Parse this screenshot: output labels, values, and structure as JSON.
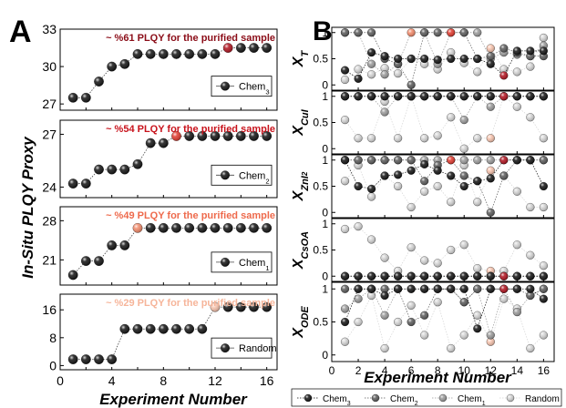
{
  "panel_a": {
    "letter": "A",
    "ylabel": "In-Situ PLQY Proxy",
    "xlabel": "Experiment Number",
    "x_ticks": [
      "0",
      "4",
      "8",
      "12",
      "16"
    ]
  },
  "panel_b": {
    "letter": "B",
    "xlabel": "Experiment Number",
    "x_ticks": [
      "0",
      "2",
      "4",
      "6",
      "8",
      "10",
      "12",
      "14",
      "16"
    ]
  },
  "legend_bottom": [
    "Chem3",
    "Chem2",
    "Chem1",
    "Random"
  ],
  "colors": {
    "chem3": "#111111",
    "chem2": "#5a5a5a",
    "chem1": "#9a9a9a",
    "random": "#d4d4d4",
    "highlight_chem3": "#b0121e",
    "highlight_chem2": "#e23a2e",
    "highlight_chem1": "#f28a6a",
    "highlight_random": "#f7c3ad",
    "annotation_chem3": "#8b0d18",
    "annotation_chem2": "#c8131c",
    "annotation_chem1": "#ee6a4c",
    "annotation_random": "#f6b59a"
  },
  "chart_data": [
    {
      "type": "line",
      "panel": "A",
      "series": [
        {
          "name": "Chem3",
          "values": [
            27.5,
            27.5,
            28.8,
            30.0,
            30.2,
            31.0,
            31.0,
            31.0,
            31.0,
            31.0,
            31.0,
            31.0,
            31.5,
            31.5,
            31.5,
            31.5
          ]
        }
      ],
      "x": [
        1,
        2,
        3,
        4,
        5,
        6,
        7,
        8,
        9,
        10,
        11,
        12,
        13,
        14,
        15,
        16
      ],
      "highlight_index": 12,
      "annotation": "~ %61 PLQY for the purified sample",
      "yticks": [
        27,
        30,
        33
      ],
      "ylim": [
        26.5,
        33
      ],
      "xlim": [
        0,
        16.8
      ]
    },
    {
      "type": "line",
      "panel": "A",
      "series": [
        {
          "name": "Chem2",
          "values": [
            24.2,
            24.2,
            25.0,
            25.0,
            25.0,
            25.3,
            26.5,
            26.5,
            26.9,
            26.9,
            26.9,
            26.9,
            26.9,
            26.9,
            26.9,
            26.9
          ]
        }
      ],
      "x": [
        1,
        2,
        3,
        4,
        5,
        6,
        7,
        8,
        9,
        10,
        11,
        12,
        13,
        14,
        15,
        16
      ],
      "highlight_index": 8,
      "annotation": "~ %54 PLQY for the purified sample",
      "yticks": [
        24,
        27
      ],
      "ylim": [
        23.4,
        27.8
      ],
      "xlim": [
        0,
        16.8
      ]
    },
    {
      "type": "line",
      "panel": "A",
      "series": [
        {
          "name": "Chem1",
          "values": [
            18.3,
            20.8,
            20.8,
            23.6,
            23.6,
            26.7,
            26.7,
            26.7,
            26.7,
            26.7,
            26.7,
            26.7,
            26.7,
            26.7,
            26.7,
            26.7
          ]
        }
      ],
      "x": [
        1,
        2,
        3,
        4,
        5,
        6,
        7,
        8,
        9,
        10,
        11,
        12,
        13,
        14,
        15,
        16
      ],
      "highlight_index": 5,
      "annotation": "~ %49 PLQY for the purified sample",
      "yticks": [
        21,
        28
      ],
      "ylim": [
        16.5,
        30.5
      ],
      "xlim": [
        0,
        16.8
      ]
    },
    {
      "type": "line",
      "panel": "A",
      "series": [
        {
          "name": "Random",
          "values": [
            1.8,
            1.8,
            1.8,
            1.8,
            10.5,
            10.5,
            10.5,
            10.5,
            10.5,
            10.5,
            10.5,
            16.8,
            16.8,
            16.8,
            16.8,
            16.8
          ]
        }
      ],
      "x": [
        1,
        2,
        3,
        4,
        5,
        6,
        7,
        8,
        9,
        10,
        11,
        12,
        13,
        14,
        15,
        16
      ],
      "highlight_index": 11,
      "annotation": "~ %29 PLQY for the purified sample",
      "yticks": [
        0,
        8,
        16
      ],
      "ylim": [
        -1.2,
        20.5
      ],
      "xlim": [
        0,
        16.8
      ]
    },
    {
      "type": "line",
      "panel": "B",
      "ylabel": "X_T",
      "ylim": [
        -0.1,
        1.1
      ],
      "yticks": [
        0.0,
        0.5,
        1.0
      ],
      "xlim": [
        0,
        16.8
      ],
      "x": [
        1,
        2,
        3,
        4,
        5,
        6,
        7,
        8,
        9,
        10,
        11,
        12,
        13,
        14,
        15,
        16
      ],
      "series": [
        {
          "name": "Chem3",
          "values": [
            0.28,
            0.12,
            0.62,
            0.55,
            0.5,
            0.5,
            0.5,
            0.48,
            0.5,
            0.5,
            0.5,
            0.4,
            0.18,
            0.65,
            0.65,
            0.65
          ],
          "highlight_index": 12
        },
        {
          "name": "Chem2",
          "values": [
            1.0,
            1.0,
            1.0,
            0.5,
            0.4,
            0.0,
            1.0,
            1.0,
            1.0,
            1.0,
            0.5,
            0.55,
            0.7,
            0.62,
            0.55,
            0.55
          ],
          "highlight_index": 8
        },
        {
          "name": "Chem1",
          "values": [
            1.0,
            1.0,
            0.4,
            0.2,
            0.4,
            1.0,
            1.0,
            0.4,
            1.0,
            1.0,
            1.0,
            0.5,
            0.62,
            0.58,
            0.55,
            0.75
          ],
          "highlight_index": 5
        },
        {
          "name": "Random",
          "values": [
            0.1,
            0.3,
            0.2,
            0.32,
            0.22,
            0.5,
            0.4,
            0.3,
            0.62,
            0.42,
            0.25,
            0.7,
            0.3,
            0.25,
            0.35,
            0.9
          ],
          "highlight_index": 11
        }
      ]
    },
    {
      "type": "line",
      "panel": "B",
      "ylabel": "X_CuI",
      "ylim": [
        -0.1,
        1.1
      ],
      "yticks": [
        0.0,
        0.5,
        1.0
      ],
      "xlim": [
        0,
        16.8
      ],
      "x": [
        1,
        2,
        3,
        4,
        5,
        6,
        7,
        8,
        9,
        10,
        11,
        12,
        13,
        14,
        15,
        16
      ],
      "series": [
        {
          "name": "Chem3",
          "values": [
            1,
            1,
            1,
            1,
            1,
            1,
            1,
            1,
            1,
            1,
            1,
            1,
            1,
            1,
            1,
            1
          ],
          "highlight_index": 12
        },
        {
          "name": "Chem2",
          "values": [
            1,
            1,
            1,
            1,
            1,
            1,
            1,
            1,
            1,
            1,
            1,
            1,
            1,
            1,
            1,
            1
          ],
          "highlight_index": 8
        },
        {
          "name": "Chem1",
          "values": [
            1,
            1,
            1,
            0.7,
            1,
            1,
            1,
            1,
            1,
            0.55,
            1,
            0.8,
            1,
            1,
            1,
            1
          ],
          "highlight_index": 5
        },
        {
          "name": "Random",
          "values": [
            0.55,
            0.2,
            0.2,
            0.9,
            0.2,
            1,
            0.2,
            0.25,
            0.6,
            0.0,
            0.2,
            0.2,
            1,
            0.8,
            0.6,
            0.2
          ],
          "highlight_index": 11
        }
      ]
    },
    {
      "type": "line",
      "panel": "B",
      "ylabel": "X_ZnI2",
      "ylim": [
        -0.1,
        1.1
      ],
      "yticks": [
        0.0,
        0.5,
        1.0
      ],
      "xlim": [
        0,
        16.8
      ],
      "x": [
        1,
        2,
        3,
        4,
        5,
        6,
        7,
        8,
        9,
        10,
        11,
        12,
        13,
        14,
        15,
        16
      ],
      "series": [
        {
          "name": "Chem3",
          "values": [
            1,
            0.5,
            0.45,
            0.7,
            0.72,
            0.8,
            0.92,
            0.8,
            0.7,
            0.5,
            0.6,
            0.65,
            1.0,
            1.0,
            1.0,
            0.5
          ],
          "highlight_index": 12
        },
        {
          "name": "Chem2",
          "values": [
            1,
            1,
            1,
            1,
            1,
            1,
            0.6,
            0.9,
            1,
            0.7,
            0.6,
            0.0,
            0.7,
            1,
            1,
            1
          ],
          "highlight_index": 8
        },
        {
          "name": "Chem1",
          "values": [
            1,
            1,
            1,
            1,
            1,
            1,
            1,
            1,
            1,
            1,
            1,
            1,
            1,
            1,
            1,
            1
          ],
          "highlight_index": 5
        },
        {
          "name": "Random",
          "values": [
            0.6,
            0.9,
            0.3,
            0.7,
            0.5,
            0.1,
            0.4,
            0.5,
            0.2,
            0.9,
            0.2,
            0.8,
            0.7,
            0.4,
            0.1,
            0.1
          ],
          "highlight_index": 11
        }
      ]
    },
    {
      "type": "line",
      "panel": "B",
      "ylabel": "X_CsOA",
      "ylim": [
        -0.1,
        1.1
      ],
      "yticks": [
        0.0,
        0.5,
        1.0
      ],
      "xlim": [
        0,
        16.8
      ],
      "x": [
        1,
        2,
        3,
        4,
        5,
        6,
        7,
        8,
        9,
        10,
        11,
        12,
        13,
        14,
        15,
        16
      ],
      "series": [
        {
          "name": "Chem3",
          "values": [
            0,
            0,
            0,
            0,
            0,
            0,
            0,
            0,
            0,
            0,
            0,
            0,
            0,
            0,
            0,
            0
          ],
          "highlight_index": 12
        },
        {
          "name": "Chem2",
          "values": [
            0,
            0,
            0,
            0,
            0,
            0,
            0,
            0,
            0,
            0,
            0,
            0,
            0,
            0,
            0,
            0
          ],
          "highlight_index": 8
        },
        {
          "name": "Chem1",
          "values": [
            0,
            0,
            0,
            0,
            0,
            0,
            0,
            0,
            0,
            0,
            0,
            0,
            0,
            0,
            0,
            0
          ],
          "highlight_index": 5
        },
        {
          "name": "Random",
          "values": [
            0.9,
            0.95,
            0.7,
            0.35,
            0.1,
            0.55,
            0.3,
            0.25,
            0.5,
            0.6,
            0.15,
            0.1,
            0.1,
            0.6,
            0.4,
            0.2
          ],
          "highlight_index": 11
        }
      ]
    },
    {
      "type": "line",
      "panel": "B",
      "ylabel": "X_ODE",
      "ylim": [
        -0.1,
        1.1
      ],
      "yticks": [
        0.0,
        0.5,
        1.0
      ],
      "xlim": [
        0,
        16.8
      ],
      "x": [
        1,
        2,
        3,
        4,
        5,
        6,
        7,
        8,
        9,
        10,
        11,
        12,
        13,
        14,
        15,
        16
      ],
      "series": [
        {
          "name": "Chem3",
          "values": [
            0.5,
            1.0,
            1.0,
            0.9,
            1.0,
            1.0,
            1.0,
            1.0,
            1.0,
            1.0,
            0.4,
            1.0,
            1.0,
            1.0,
            1.0,
            0.85
          ],
          "highlight_index": 12
        },
        {
          "name": "Chem2",
          "values": [
            1.0,
            1.0,
            1.0,
            1.0,
            1.0,
            0.5,
            0.6,
            1.0,
            1.0,
            0.8,
            1.0,
            1.0,
            1.0,
            1.0,
            0.9,
            1.0
          ],
          "highlight_index": 8
        },
        {
          "name": "Chem1",
          "values": [
            0.7,
            0.85,
            1.0,
            0.6,
            1.0,
            1.0,
            1.0,
            1.0,
            1.0,
            0.8,
            1.0,
            0.3,
            1.0,
            0.65,
            0.9,
            1.0
          ],
          "highlight_index": 5
        },
        {
          "name": "Random",
          "values": [
            0.2,
            0.5,
            0.9,
            0.1,
            0.5,
            0.75,
            0.3,
            0.8,
            0.1,
            0.3,
            0.6,
            0.2,
            0.85,
            0.7,
            0.1,
            0.3
          ],
          "highlight_index": 11
        }
      ]
    }
  ]
}
